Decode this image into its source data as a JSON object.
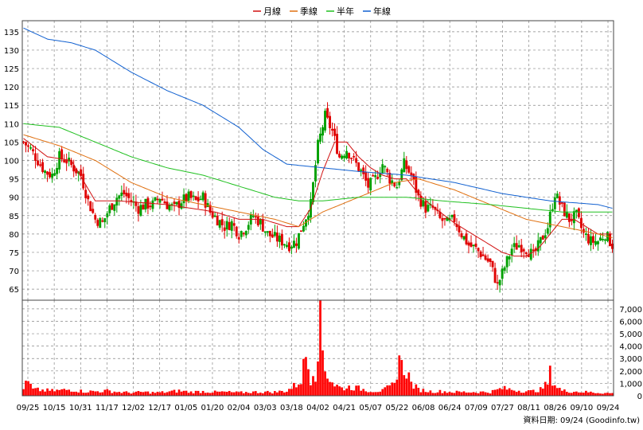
{
  "chart_data": {
    "type": "candlestick",
    "legend": {
      "placement": "top-center",
      "entries": [
        {
          "key": "ma20",
          "label": "月線",
          "color": "#d01010"
        },
        {
          "key": "ma60",
          "label": "季線",
          "color": "#e07010"
        },
        {
          "key": "ma120",
          "label": "半年",
          "color": "#20c020"
        },
        {
          "key": "ma240",
          "label": "年線",
          "color": "#1060d0"
        }
      ]
    },
    "source_text": "資料日期: 09/24  (Goodinfo.tw)",
    "price_axis": {
      "min": 62,
      "max": 138,
      "ticks": [
        65,
        70,
        75,
        80,
        85,
        90,
        95,
        100,
        105,
        110,
        115,
        120,
        125,
        130,
        135
      ]
    },
    "volume_axis": {
      "min": 0,
      "max": 7700,
      "ticks": [
        0,
        1000,
        2000,
        3000,
        4000,
        5000,
        6000,
        7000
      ],
      "tick_labels": [
        "0",
        "1,000",
        "2,000",
        "3,000",
        "4,000",
        "5,000",
        "6,000",
        "7,000"
      ]
    },
    "x_ticks": [
      "09/25",
      "10/15",
      "10/31",
      "11/17",
      "12/02",
      "12/17",
      "01/05",
      "01/20",
      "02/04",
      "03/03",
      "03/18",
      "04/02",
      "04/21",
      "05/07",
      "05/22",
      "06/08",
      "06/24",
      "07/09",
      "07/27",
      "08/11",
      "08/26",
      "09/10",
      "09/24"
    ],
    "grid": true,
    "up_color": "#00a000",
    "down_color": "#e00000",
    "volume_color": "#ff0000",
    "close_anchors": [
      [
        0,
        105
      ],
      [
        3,
        103
      ],
      [
        6,
        100
      ],
      [
        9,
        97
      ],
      [
        12,
        96
      ],
      [
        15,
        101
      ],
      [
        18,
        100
      ],
      [
        21,
        98
      ],
      [
        24,
        96
      ],
      [
        27,
        89
      ],
      [
        30,
        84
      ],
      [
        33,
        83
      ],
      [
        36,
        87
      ],
      [
        39,
        90
      ],
      [
        42,
        91
      ],
      [
        45,
        89
      ],
      [
        48,
        87
      ],
      [
        51,
        88
      ],
      [
        54,
        88
      ],
      [
        57,
        90
      ],
      [
        60,
        88
      ],
      [
        63,
        87
      ],
      [
        66,
        89
      ],
      [
        69,
        90
      ],
      [
        72,
        89
      ],
      [
        75,
        90
      ],
      [
        78,
        86
      ],
      [
        81,
        84
      ],
      [
        84,
        82
      ],
      [
        87,
        83
      ],
      [
        90,
        80
      ],
      [
        93,
        82
      ],
      [
        96,
        85
      ],
      [
        99,
        83
      ],
      [
        102,
        80
      ],
      [
        105,
        79
      ],
      [
        108,
        78
      ],
      [
        111,
        77
      ],
      [
        114,
        78
      ],
      [
        117,
        83
      ],
      [
        120,
        88
      ],
      [
        123,
        104
      ],
      [
        126,
        112
      ],
      [
        129,
        108
      ],
      [
        132,
        101
      ],
      [
        135,
        103
      ],
      [
        138,
        100
      ],
      [
        141,
        97
      ],
      [
        144,
        93
      ],
      [
        147,
        95
      ],
      [
        150,
        99
      ],
      [
        153,
        95
      ],
      [
        156,
        93
      ],
      [
        159,
        99
      ],
      [
        162,
        96
      ],
      [
        165,
        90
      ],
      [
        168,
        87
      ],
      [
        171,
        87
      ],
      [
        174,
        84
      ],
      [
        177,
        83
      ],
      [
        180,
        84
      ],
      [
        183,
        80
      ],
      [
        186,
        77
      ],
      [
        189,
        76
      ],
      [
        192,
        74
      ],
      [
        195,
        72
      ],
      [
        198,
        66
      ],
      [
        201,
        71
      ],
      [
        204,
        76
      ],
      [
        207,
        77
      ],
      [
        210,
        76
      ],
      [
        213,
        74
      ],
      [
        216,
        78
      ],
      [
        219,
        82
      ],
      [
        222,
        91
      ],
      [
        225,
        87
      ],
      [
        228,
        84
      ],
      [
        231,
        85
      ],
      [
        234,
        80
      ],
      [
        237,
        78
      ],
      [
        240,
        78
      ],
      [
        243,
        80
      ],
      [
        246,
        77
      ]
    ],
    "moving_averages": {
      "ma20": [
        [
          0,
          106
        ],
        [
          10,
          101
        ],
        [
          20,
          100
        ],
        [
          30,
          89
        ],
        [
          40,
          89
        ],
        [
          60,
          88
        ],
        [
          80,
          86
        ],
        [
          90,
          84
        ],
        [
          100,
          84
        ],
        [
          110,
          82
        ],
        [
          115,
          82
        ],
        [
          120,
          87
        ],
        [
          125,
          97
        ],
        [
          130,
          105
        ],
        [
          135,
          105
        ],
        [
          140,
          101
        ],
        [
          145,
          98
        ],
        [
          150,
          96
        ],
        [
          155,
          95
        ],
        [
          160,
          95
        ],
        [
          165,
          91
        ],
        [
          170,
          88
        ],
        [
          180,
          83
        ],
        [
          190,
          79
        ],
        [
          200,
          75
        ],
        [
          205,
          74
        ],
        [
          210,
          74
        ],
        [
          215,
          76
        ],
        [
          220,
          80
        ],
        [
          225,
          84
        ],
        [
          230,
          84
        ],
        [
          235,
          82
        ],
        [
          240,
          80
        ],
        [
          246,
          80
        ]
      ],
      "ma60": [
        [
          0,
          107
        ],
        [
          15,
          104
        ],
        [
          30,
          100
        ],
        [
          45,
          94
        ],
        [
          60,
          90
        ],
        [
          75,
          88
        ],
        [
          90,
          86
        ],
        [
          105,
          84
        ],
        [
          115,
          82
        ],
        [
          125,
          86
        ],
        [
          140,
          90
        ],
        [
          155,
          94
        ],
        [
          165,
          95
        ],
        [
          170,
          94
        ],
        [
          180,
          92
        ],
        [
          195,
          88
        ],
        [
          210,
          84
        ],
        [
          225,
          82
        ],
        [
          240,
          80
        ],
        [
          246,
          79
        ]
      ],
      "ma120": [
        [
          0,
          110
        ],
        [
          15,
          109
        ],
        [
          30,
          105
        ],
        [
          45,
          101
        ],
        [
          60,
          98
        ],
        [
          75,
          96
        ],
        [
          90,
          93
        ],
        [
          105,
          90
        ],
        [
          115,
          89
        ],
        [
          125,
          89
        ],
        [
          140,
          90
        ],
        [
          160,
          90
        ],
        [
          175,
          89
        ],
        [
          195,
          88
        ],
        [
          210,
          87
        ],
        [
          225,
          86
        ],
        [
          240,
          86
        ],
        [
          246,
          86
        ]
      ],
      "ma240": [
        [
          0,
          136
        ],
        [
          10,
          133
        ],
        [
          20,
          132
        ],
        [
          30,
          130
        ],
        [
          45,
          124
        ],
        [
          60,
          119
        ],
        [
          75,
          115
        ],
        [
          90,
          109
        ],
        [
          100,
          103
        ],
        [
          110,
          99
        ],
        [
          125,
          98
        ],
        [
          140,
          97
        ],
        [
          160,
          96
        ],
        [
          180,
          94
        ],
        [
          200,
          91
        ],
        [
          220,
          89
        ],
        [
          240,
          88
        ],
        [
          246,
          87
        ]
      ]
    },
    "volume_anchors": [
      [
        0,
        700
      ],
      [
        2,
        1100
      ],
      [
        4,
        500
      ],
      [
        8,
        450
      ],
      [
        12,
        400
      ],
      [
        16,
        450
      ],
      [
        20,
        500
      ],
      [
        25,
        350
      ],
      [
        30,
        350
      ],
      [
        35,
        400
      ],
      [
        40,
        300
      ],
      [
        45,
        250
      ],
      [
        50,
        300
      ],
      [
        55,
        250
      ],
      [
        60,
        300
      ],
      [
        65,
        400
      ],
      [
        70,
        300
      ],
      [
        75,
        350
      ],
      [
        80,
        300
      ],
      [
        85,
        300
      ],
      [
        90,
        250
      ],
      [
        95,
        300
      ],
      [
        100,
        300
      ],
      [
        105,
        300
      ],
      [
        110,
        400
      ],
      [
        114,
        900
      ],
      [
        116,
        1300
      ],
      [
        118,
        3300
      ],
      [
        120,
        1400
      ],
      [
        121,
        2100
      ],
      [
        122,
        1800
      ],
      [
        124,
        7000
      ],
      [
        125,
        3600
      ],
      [
        126,
        2200
      ],
      [
        128,
        1400
      ],
      [
        130,
        900
      ],
      [
        133,
        600
      ],
      [
        136,
        700
      ],
      [
        140,
        600
      ],
      [
        145,
        400
      ],
      [
        150,
        400
      ],
      [
        155,
        900
      ],
      [
        157,
        3300
      ],
      [
        158,
        2300
      ],
      [
        160,
        2100
      ],
      [
        162,
        1000
      ],
      [
        165,
        500
      ],
      [
        170,
        350
      ],
      [
        175,
        350
      ],
      [
        180,
        300
      ],
      [
        185,
        300
      ],
      [
        190,
        300
      ],
      [
        195,
        300
      ],
      [
        200,
        600
      ],
      [
        204,
        500
      ],
      [
        208,
        400
      ],
      [
        212,
        350
      ],
      [
        216,
        500
      ],
      [
        219,
        1000
      ],
      [
        220,
        1800
      ],
      [
        222,
        900
      ],
      [
        225,
        400
      ],
      [
        230,
        350
      ],
      [
        235,
        300
      ],
      [
        240,
        250
      ],
      [
        246,
        200
      ]
    ]
  }
}
